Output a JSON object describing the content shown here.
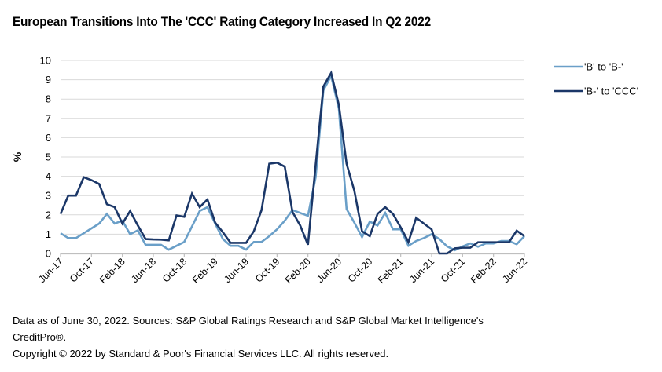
{
  "chart_data": {
    "type": "line",
    "title": "European Transitions Into The 'CCC' Rating Category Increased In Q2 2022",
    "xlabel": "",
    "ylabel": "%",
    "ylim": [
      0,
      10
    ],
    "yticks": [
      "0",
      "1",
      "2",
      "3",
      "4",
      "5",
      "6",
      "7",
      "8",
      "9",
      "10"
    ],
    "grid": true,
    "legend_position": "right",
    "x": [
      "Jun-17",
      "Jul-17",
      "Aug-17",
      "Sep-17",
      "Oct-17",
      "Nov-17",
      "Dec-17",
      "Jan-18",
      "Feb-18",
      "Mar-18",
      "Apr-18",
      "May-18",
      "Jun-18",
      "Jul-18",
      "Aug-18",
      "Sep-18",
      "Oct-18",
      "Nov-18",
      "Dec-18",
      "Jan-19",
      "Feb-19",
      "Mar-19",
      "Apr-19",
      "May-19",
      "Jun-19",
      "Jul-19",
      "Aug-19",
      "Sep-19",
      "Oct-19",
      "Nov-19",
      "Dec-19",
      "Jan-20",
      "Feb-20",
      "Mar-20",
      "Apr-20",
      "May-20",
      "Jun-20",
      "Jul-20",
      "Aug-20",
      "Sep-20",
      "Oct-20",
      "Nov-20",
      "Dec-20",
      "Jan-21",
      "Feb-21",
      "Mar-21",
      "Apr-21",
      "May-21",
      "Jun-21",
      "Jul-21",
      "Aug-21",
      "Sep-21",
      "Oct-21",
      "Nov-21",
      "Dec-21",
      "Jan-22",
      "Feb-22",
      "Mar-22",
      "Apr-22",
      "May-22",
      "Jun-22"
    ],
    "xtick_labels": [
      "Jun-17",
      "Oct-17",
      "Feb-18",
      "Jun-18",
      "Oct-18",
      "Feb-19",
      "Jun-19",
      "Oct-19",
      "Feb-20",
      "Jun-20",
      "Oct-20",
      "Feb-21",
      "Jun-21",
      "Oct-21",
      "Feb-22",
      "Jun-22"
    ],
    "series": [
      {
        "name": "'B' to 'B-'",
        "color": "#6a9fc8",
        "values": [
          1.05,
          0.8,
          0.8,
          1.05,
          1.3,
          1.55,
          2.05,
          1.55,
          1.7,
          1.0,
          1.2,
          0.45,
          0.45,
          0.45,
          0.2,
          0.4,
          0.6,
          1.4,
          2.2,
          2.4,
          1.55,
          0.75,
          0.4,
          0.4,
          0.2,
          0.6,
          0.6,
          0.9,
          1.25,
          1.7,
          2.25,
          2.1,
          1.95,
          3.95,
          8.45,
          9.2,
          7.5,
          2.3,
          1.6,
          0.85,
          1.65,
          1.45,
          2.1,
          1.25,
          1.25,
          0.4,
          0.65,
          0.8,
          1.0,
          0.75,
          0.37,
          0.17,
          0.37,
          0.52,
          0.35,
          0.52,
          0.52,
          0.65,
          0.65,
          0.48,
          0.9
        ]
      },
      {
        "name": "'B-' to 'CCC'",
        "color": "#1b3768",
        "values": [
          2.05,
          3.0,
          3.0,
          3.95,
          3.8,
          3.6,
          2.55,
          2.4,
          1.55,
          2.2,
          1.45,
          0.75,
          0.73,
          0.72,
          0.68,
          1.97,
          1.9,
          3.1,
          2.4,
          2.8,
          1.6,
          1.1,
          0.55,
          0.55,
          0.55,
          1.15,
          2.25,
          4.65,
          4.7,
          4.5,
          2.15,
          1.45,
          0.45,
          4.6,
          8.65,
          9.35,
          7.7,
          4.65,
          3.25,
          1.15,
          0.9,
          2.05,
          2.4,
          2.05,
          1.35,
          0.6,
          1.85,
          1.55,
          1.25,
          0.0,
          0.0,
          0.27,
          0.3,
          0.3,
          0.58,
          0.58,
          0.58,
          0.58,
          0.58,
          1.18,
          0.9
        ]
      }
    ]
  },
  "footer": {
    "line1": "Data as of June 30, 2022. Sources: S&P Global Ratings Research and S&P Global Market Intelligence's",
    "line2": "CreditPro®.",
    "line3": "Copyright © 2022 by Standard & Poor's Financial Services LLC. All rights reserved."
  },
  "colors": {
    "grid": "#d9d9d9",
    "axis": "#bfbfbf"
  }
}
